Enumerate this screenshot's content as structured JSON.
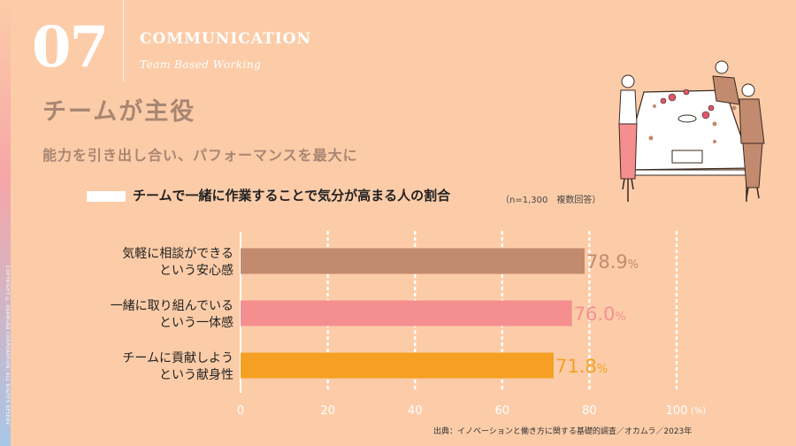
{
  "copyright": "COPYRIGHT © OKAMURA CORPORATION. ALL RIGHTS RESERVED.",
  "section": {
    "number": "07",
    "title": "COMMUNICATION",
    "subtitle": "Team Based Working"
  },
  "heading": "チームが主役",
  "subheading": "能力を引き出し合い、パフォーマンスを最大に",
  "colors": {
    "background": "#fccca8",
    "bar1": "#c28a6e",
    "bar2": "#f58f8f",
    "bar3": "#f5a023",
    "axis": "#ffffff"
  },
  "chart_data": {
    "type": "bar",
    "orientation": "horizontal",
    "title": "チームで一緒に作業することで気分が高まる人の割合",
    "note": "（n=1,300　複数回答）",
    "categories": [
      [
        "気軽に相談ができる",
        "という安心感"
      ],
      [
        "一緒に取り組んでいる",
        "という一体感"
      ],
      [
        "チームに貢献しよう",
        "という献身性"
      ]
    ],
    "values": [
      78.9,
      76.0,
      71.8
    ],
    "value_labels": [
      "78.9",
      "76.0",
      "71.8"
    ],
    "value_unit": "%",
    "xlim": [
      0,
      100
    ],
    "xticks": [
      "0",
      "20",
      "40",
      "60",
      "80",
      "100"
    ],
    "x_unit": "(%)",
    "grid": true
  },
  "source": "出典：イノベーションと働き方に関する基礎的調査／オカムラ／2023年"
}
